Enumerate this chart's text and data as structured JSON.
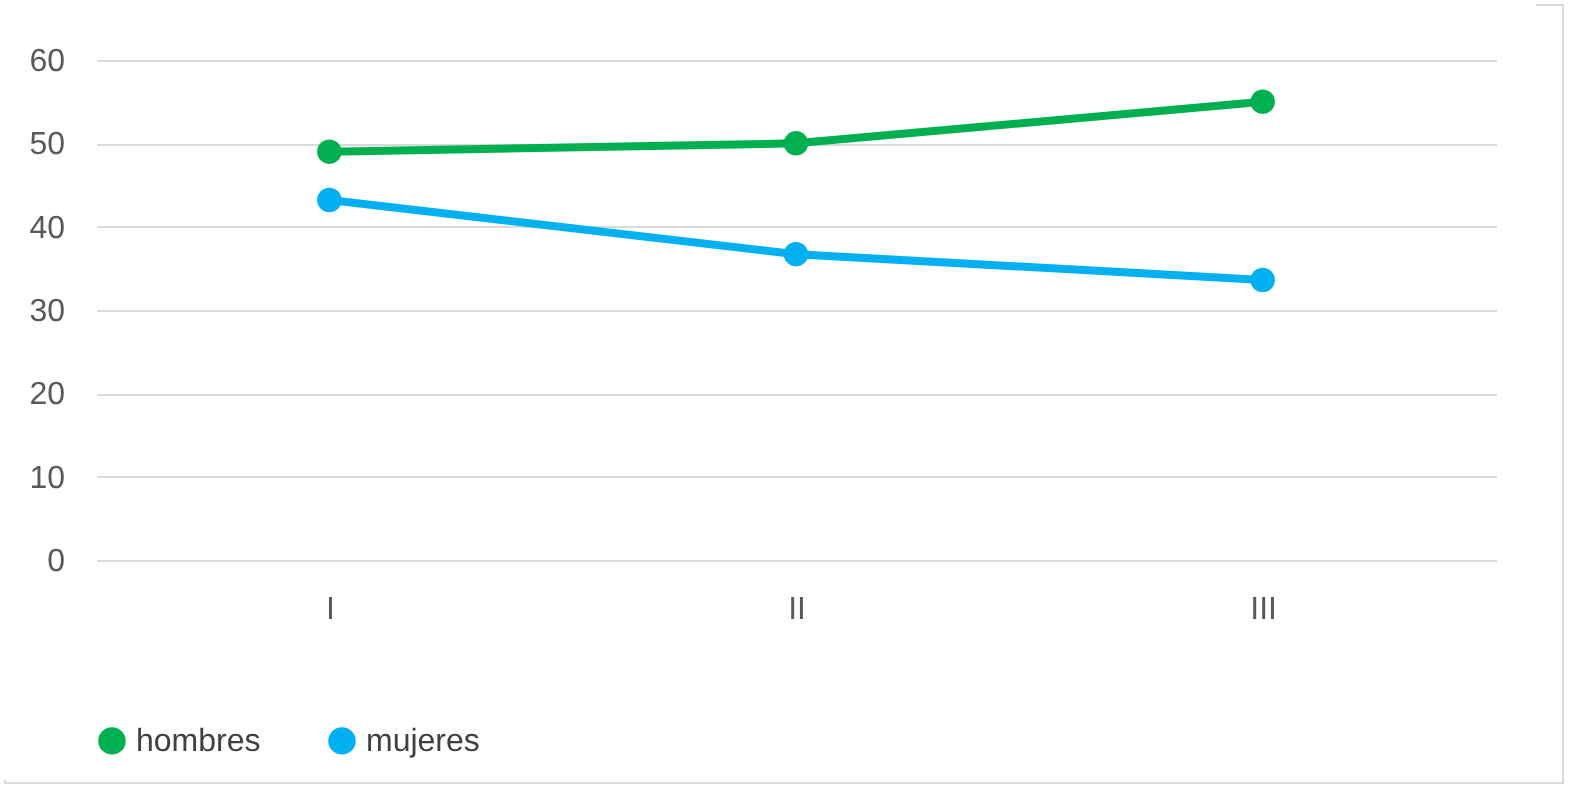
{
  "chart_data": {
    "type": "line",
    "categories": [
      "I",
      "II",
      "III"
    ],
    "series": [
      {
        "name": "hombres",
        "color": "#00b050",
        "values": [
          49,
          50,
          55
        ]
      },
      {
        "name": "mujeres",
        "color": "#00b0f0",
        "values": [
          43.2,
          36.7,
          33.6
        ]
      }
    ],
    "ylim": [
      0,
      60
    ],
    "yticks": [
      0,
      10,
      20,
      30,
      40,
      50,
      60
    ],
    "grid": "y",
    "legend": "bottom",
    "marker": "circle",
    "line_style": "solid"
  }
}
